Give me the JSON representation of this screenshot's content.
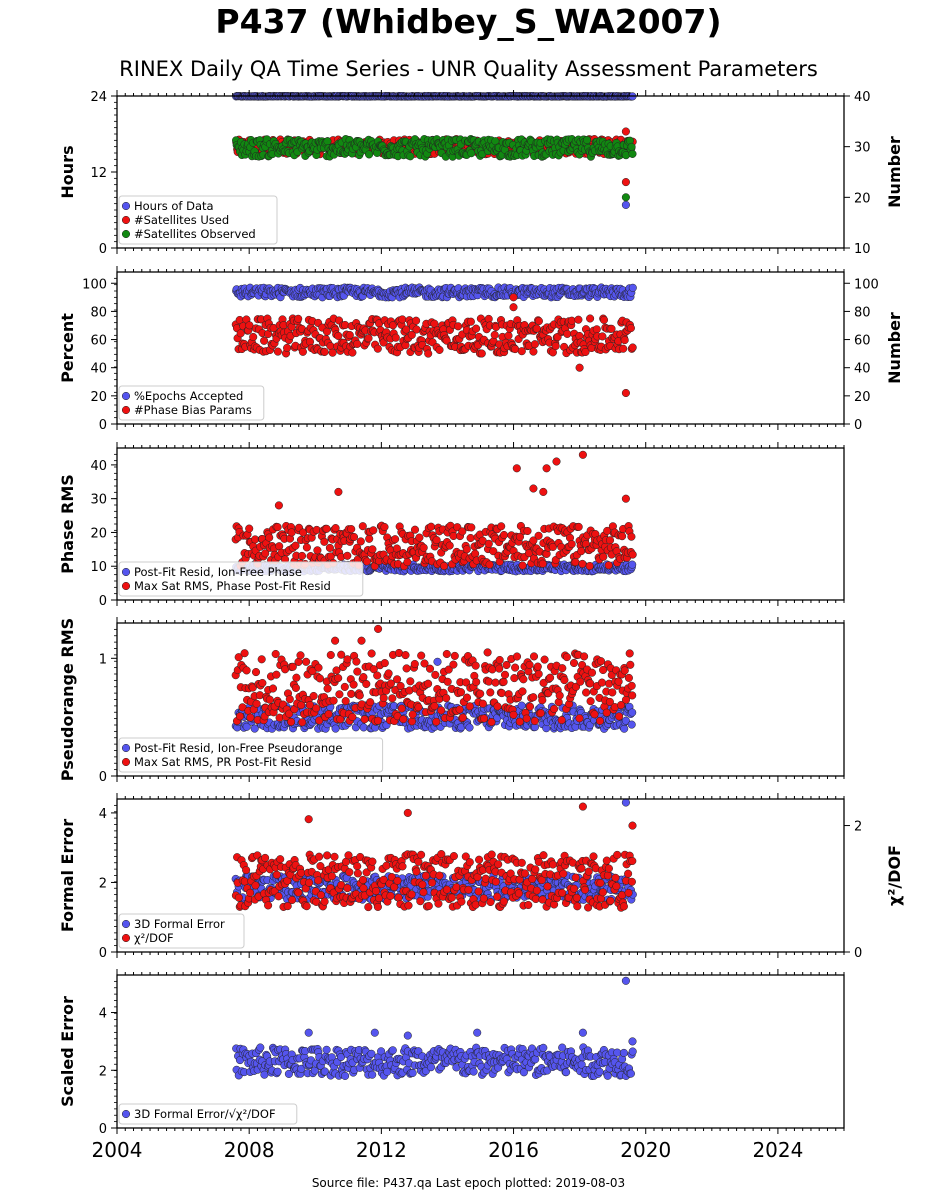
{
  "title": "P437 (Whidbey_S_WA2007)",
  "subtitle": "RINEX Daily QA Time Series - UNR Quality Assessment Parameters",
  "source_note": "Source file: P437.qa Last epoch plotted: 2019-08-03",
  "colors": {
    "blue": "#5555ee",
    "red": "#ee1111",
    "green": "#118811",
    "navy": "#0c1240"
  },
  "chart_data": [
    {
      "type": "scatter",
      "ylabel": "Hours",
      "ylabel_right": "Number",
      "xlim": [
        2004,
        2026
      ],
      "ylim": [
        0,
        24
      ],
      "ylim_right": [
        10,
        40
      ],
      "yticks": [
        "0",
        "12",
        "24"
      ],
      "yticks_right": [
        "10",
        "20",
        "30",
        "40"
      ],
      "legend": "lower-left",
      "series": [
        {
          "name": "Hours of Data",
          "axis": "left",
          "color": "blue",
          "x_range": [
            2007.6,
            2019.6
          ],
          "y_range": [
            23.9,
            24.0
          ],
          "outliers": [
            [
              2019.4,
              6.8
            ]
          ]
        },
        {
          "name": "#Satellites Used",
          "axis": "right",
          "color": "red",
          "x_range": [
            2007.6,
            2019.6
          ],
          "y_range": [
            28.5,
            31.5
          ],
          "outliers": [
            [
              2019.4,
              33.0
            ],
            [
              2019.4,
              23.0
            ],
            [
              2008.8,
              30.0
            ]
          ]
        },
        {
          "name": "#Satellites Observed",
          "axis": "right",
          "color": "green",
          "x_range": [
            2007.6,
            2019.6
          ],
          "y_range": [
            28.0,
            31.5
          ],
          "outliers": [
            [
              2019.4,
              20.0
            ]
          ]
        }
      ]
    },
    {
      "type": "scatter",
      "ylabel": "Percent",
      "ylabel_right": "Number",
      "xlim": [
        2004,
        2026
      ],
      "ylim": [
        0,
        108
      ],
      "ylim_right": [
        0,
        108
      ],
      "yticks": [
        "0",
        "20",
        "40",
        "60",
        "80",
        "100"
      ],
      "yticks_right": [
        "0",
        "20",
        "40",
        "60",
        "80",
        "100"
      ],
      "legend": "lower-left",
      "series": [
        {
          "name": "%Epochs Accepted",
          "axis": "left",
          "color": "blue",
          "x_range": [
            2007.6,
            2019.6
          ],
          "y_range": [
            90,
            97
          ]
        },
        {
          "name": "#Phase Bias Params",
          "axis": "right",
          "color": "red",
          "x_range": [
            2007.6,
            2019.6
          ],
          "y_range": [
            50,
            75
          ],
          "outliers": [
            [
              2016.0,
              90
            ],
            [
              2016.0,
              83
            ],
            [
              2018.0,
              40
            ],
            [
              2019.4,
              22
            ]
          ]
        }
      ]
    },
    {
      "type": "scatter",
      "ylabel": "Phase RMS",
      "xlim": [
        2004,
        2026
      ],
      "ylim": [
        0,
        45
      ],
      "yticks": [
        "0",
        "10",
        "20",
        "30",
        "40"
      ],
      "legend": "lower-left",
      "series": [
        {
          "name": "Post-Fit Resid, Ion-Free Phase",
          "axis": "left",
          "color": "blue",
          "x_range": [
            2007.6,
            2019.6
          ],
          "y_range": [
            8.5,
            10.5
          ]
        },
        {
          "name": "Max Sat RMS, Phase Post-Fit Resid",
          "axis": "left",
          "color": "red",
          "x_range": [
            2007.6,
            2019.6
          ],
          "y_range": [
            10,
            22
          ],
          "outliers": [
            [
              2010.7,
              32
            ],
            [
              2016.1,
              39
            ],
            [
              2017.0,
              39
            ],
            [
              2017.3,
              41
            ],
            [
              2018.1,
              43
            ],
            [
              2016.6,
              33
            ],
            [
              2016.9,
              32
            ],
            [
              2019.4,
              30
            ],
            [
              2008.9,
              28
            ]
          ]
        }
      ]
    },
    {
      "type": "scatter",
      "ylabel": "Pseudorange RMS",
      "xlim": [
        2004,
        2026
      ],
      "ylim": [
        0,
        1.3
      ],
      "yticks": [
        "0",
        "1"
      ],
      "legend": "lower-left",
      "series": [
        {
          "name": "Post-Fit Resid, Ion-Free Pseudorange",
          "axis": "left",
          "color": "blue",
          "x_range": [
            2007.6,
            2019.6
          ],
          "y_range": [
            0.4,
            0.6
          ],
          "outliers": [
            [
              2013.7,
              0.97
            ]
          ]
        },
        {
          "name": "Max Sat RMS, PR Post-Fit Resid",
          "axis": "left",
          "color": "red",
          "x_range": [
            2007.6,
            2019.6
          ],
          "y_range": [
            0.45,
            1.05
          ],
          "outliers": [
            [
              2011.9,
              1.25
            ],
            [
              2011.4,
              1.15
            ],
            [
              2010.6,
              1.15
            ]
          ]
        }
      ]
    },
    {
      "type": "scatter",
      "ylabel": "Formal Error",
      "ylabel_right": "χ²/DOF",
      "xlim": [
        2004,
        2026
      ],
      "ylim": [
        0,
        4.4
      ],
      "ylim_right": [
        0,
        2.42
      ],
      "yticks": [
        "0",
        "2",
        "4"
      ],
      "yticks_right": [
        "0",
        "2"
      ],
      "legend": "lower-left",
      "series": [
        {
          "name": "3D Formal Error",
          "axis": "left",
          "color": "blue",
          "x_range": [
            2007.6,
            2019.6
          ],
          "y_range": [
            1.5,
            2.2
          ],
          "outliers": [
            [
              2019.4,
              4.3
            ]
          ]
        },
        {
          "name": "χ²/DOF",
          "axis": "right",
          "color": "red",
          "x_range": [
            2007.6,
            2019.6
          ],
          "y_range": [
            0.7,
            1.55
          ],
          "outliers": [
            [
              2009.8,
              2.1
            ],
            [
              2012.8,
              2.2
            ],
            [
              2018.1,
              2.3
            ],
            [
              2019.6,
              2.0
            ]
          ]
        }
      ]
    },
    {
      "type": "scatter",
      "ylabel": "Scaled Error",
      "xlim": [
        2004,
        2026
      ],
      "ylim": [
        0,
        5.3
      ],
      "yticks": [
        "0",
        "2",
        "4"
      ],
      "legend": "lower-left",
      "series": [
        {
          "name": "3D Formal Error/√χ²/DOF",
          "axis": "left",
          "color": "blue",
          "x_range": [
            2007.6,
            2019.6
          ],
          "y_range": [
            1.8,
            2.8
          ],
          "outliers": [
            [
              2019.4,
              5.1
            ],
            [
              2009.8,
              3.3
            ],
            [
              2011.8,
              3.3
            ],
            [
              2018.1,
              3.3
            ],
            [
              2014.9,
              3.3
            ],
            [
              2012.8,
              3.2
            ],
            [
              2019.6,
              3.0
            ]
          ]
        }
      ]
    }
  ],
  "x_ticks": [
    "2004",
    "2008",
    "2012",
    "2016",
    "2020",
    "2024"
  ]
}
